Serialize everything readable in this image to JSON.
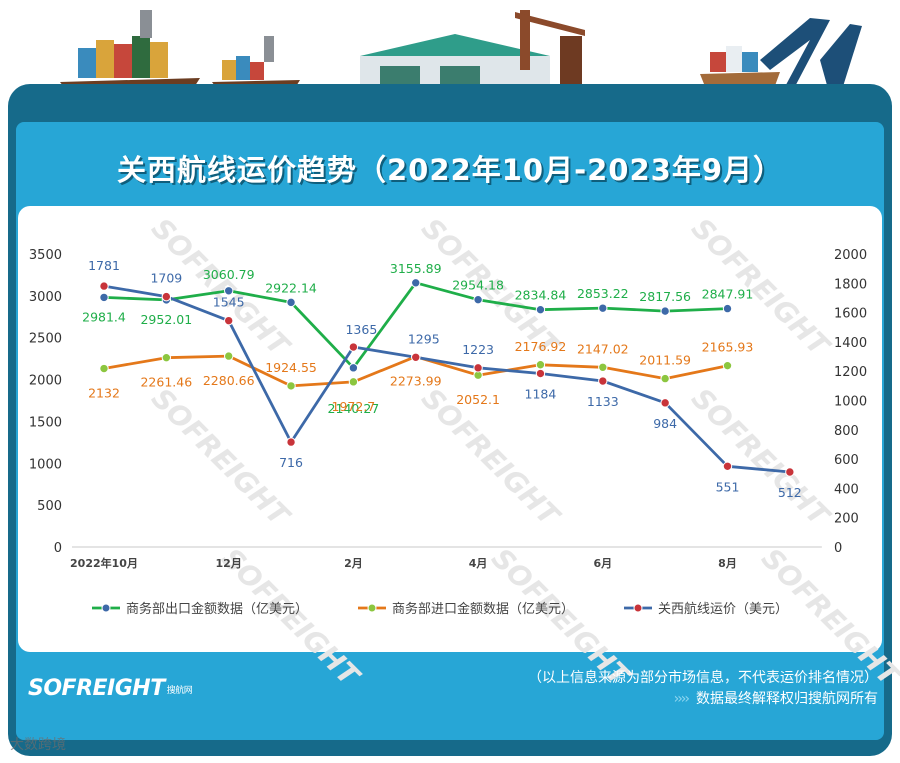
{
  "title": "关西航线运价趋势（2022年10月-2023年9月）",
  "footer": {
    "note_line1": "（以上信息来源为部分市场信息，不代表运价排名情况）",
    "note_arrows": "››››",
    "note_line2": "数据最终解释权归搜航网所有"
  },
  "logo": {
    "text": "SOFREIGHT",
    "sub": "搜航网"
  },
  "corner_brand": "大数跨境",
  "watermark_text": "SOFREIGHT",
  "colors": {
    "export": "#1fae49",
    "import": "#e4781a",
    "freight": "#3d69a8",
    "marker_fill": "#8cc63f",
    "red_dot": "#c8343a"
  },
  "chart_data": {
    "type": "line",
    "title": "关西航线运价趋势（2022年10月-2023年9月）",
    "x_labels": [
      "2022年10月",
      "",
      "12月",
      "",
      "2月",
      "",
      "4月",
      "",
      "6月",
      "",
      "8月",
      ""
    ],
    "left_axis": {
      "min": 0,
      "max": 3500,
      "ticks": [
        0,
        500,
        1000,
        1500,
        2000,
        2500,
        3000,
        3500
      ]
    },
    "right_axis": {
      "min": 0,
      "max": 2000,
      "ticks": [
        0,
        200,
        400,
        600,
        800,
        1000,
        1200,
        1400,
        1600,
        1800,
        2000
      ]
    },
    "series": [
      {
        "name": "商务部出口金额数据（亿美元）",
        "axis": "left",
        "values": [
          2981.4,
          2952.01,
          3060.79,
          2922.14,
          2140.27,
          3155.89,
          2954.18,
          2834.84,
          2853.22,
          2817.56,
          2847.91
        ],
        "labels": [
          "2981.4",
          "2952.01",
          "3060.79",
          "2922.14",
          "2140.27",
          "3155.89",
          "2954.18",
          "2834.84",
          "2853.22",
          "2817.56",
          "2847.91"
        ]
      },
      {
        "name": "商务部进口金额数据（亿美元）",
        "axis": "left",
        "values": [
          2132,
          2261.46,
          2280.66,
          1924.55,
          1972.7,
          2273.99,
          2052.1,
          2176.92,
          2147.02,
          2011.59,
          2165.93
        ],
        "labels": [
          "2132",
          "2261.46",
          "2280.66",
          "1924.55",
          "1972.7",
          "2273.99",
          "2052.1",
          "2176.92",
          "2147.02",
          "2011.59",
          "2165.93"
        ]
      },
      {
        "name": "关西航线运价（美元）",
        "axis": "right",
        "values": [
          1781,
          1709,
          1545,
          716,
          1365,
          1295,
          1223,
          1184,
          1133,
          984,
          551,
          512
        ],
        "labels": [
          "1781",
          "1709",
          "1545",
          "716",
          "1365",
          "1295",
          "1223",
          "1184",
          "1133",
          "984",
          "551",
          "512"
        ]
      }
    ]
  }
}
